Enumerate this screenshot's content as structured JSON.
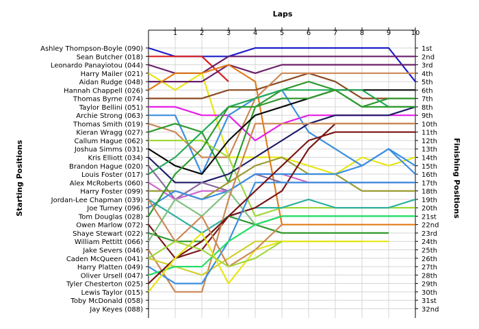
{
  "chart_data": {
    "type": "line",
    "x_axis_title": "Laps",
    "left_axis_title": "Starting Positions",
    "right_axis_title": "Finishing Positions",
    "grid": true,
    "laps": [
      1,
      2,
      3,
      4,
      5,
      6,
      7,
      8,
      9,
      10
    ],
    "starting_labels": [
      "Ashley Thompson-Boyle (090)",
      "Sean Butcher (018)",
      "Leonardo Panayiotou (044)",
      "Harry Mailer (021)",
      "Aidan Rudge (048)",
      "Hannah Chappell (026)",
      "Thomas Byrne (074)",
      "Taylor Bellini (051)",
      "Archie Strong (063)",
      "Thomas Smith (019)",
      "Kieran Wragg (027)",
      "Callum Hague (062)",
      "Joshua Simms (031)",
      "Kris Elliott (034)",
      "Brandon Hague (020)",
      "Louis Foster (017)",
      "Alex McRoberts (060)",
      "Harry Foster (099)",
      "Jordan-Lee Chapman (039)",
      "Joe Turney (096)",
      "Tom Douglas (028)",
      "Owen Marlow (072)",
      "Shaye Stewart (022)",
      "William Pettitt (066)",
      "Jake Severs (046)",
      "Caden McQueen (041)",
      "Harry Platten (049)",
      "Oliver Ursell (047)",
      "Tyler Chesterton (025)",
      "Lewis Taylor (015)",
      "Toby McDonald (058)",
      "Jay Keyes (088)"
    ],
    "finishing_labels": [
      "1st",
      "2nd",
      "3rd",
      "4th",
      "5th",
      "6th",
      "7th",
      "8th",
      "9th",
      "10th",
      "11th",
      "12th",
      "13th",
      "14th",
      "15th",
      "16th",
      "17th",
      "18th",
      "19th",
      "20th",
      "21st",
      "22nd",
      "23rd",
      "24th",
      "25th",
      "26th",
      "27th",
      "28th",
      "29th",
      "30th",
      "31st",
      "32nd"
    ],
    "series": [
      {
        "color": "#1c1cc8",
        "positions": [
          1,
          2,
          2,
          2,
          1,
          1,
          1,
          1,
          1,
          1,
          5
        ]
      },
      {
        "color": "#d81e1e",
        "positions": [
          2,
          2,
          2,
          5
        ]
      },
      {
        "color": "#6a1f6a",
        "positions": [
          3,
          4,
          4,
          2,
          2,
          2,
          2,
          2,
          2,
          2,
          2
        ]
      },
      {
        "color": "#e6e614",
        "positions": [
          4,
          6,
          4,
          14,
          14,
          14,
          15,
          16,
          14,
          15,
          14
        ]
      },
      {
        "color": "#6a1f6a",
        "positions": [
          5,
          5,
          5,
          3,
          4,
          3,
          3,
          3,
          3,
          3,
          3
        ]
      },
      {
        "color": "#e07c18",
        "positions": [
          6,
          4,
          4,
          3,
          5,
          22,
          22,
          22,
          22,
          22,
          22
        ]
      },
      {
        "color": "#8b4a24",
        "positions": [
          7,
          7,
          7,
          6,
          6,
          5,
          4,
          5,
          7,
          7,
          7
        ]
      },
      {
        "color": "#e61ee6",
        "positions": [
          8,
          8,
          9,
          9,
          12,
          10,
          9,
          9,
          9,
          9,
          9
        ]
      },
      {
        "color": "#3a8fe0",
        "positions": [
          9,
          9,
          16,
          9,
          7,
          6,
          11,
          13,
          15,
          13,
          16
        ]
      },
      {
        "color": "#cc8855",
        "positions": [
          10,
          11,
          14,
          14,
          7,
          4,
          4,
          4,
          4,
          4,
          4
        ]
      },
      {
        "color": "#2f9a2f",
        "positions": [
          11,
          10,
          11,
          17,
          8,
          6,
          5,
          6,
          8,
          7,
          7
        ]
      },
      {
        "color": "#a0d838",
        "positions": [
          12,
          12,
          12,
          14,
          21,
          20,
          20,
          20,
          20,
          20,
          20
        ]
      },
      {
        "color": "#0a0a0a",
        "positions": [
          13,
          15,
          16,
          12,
          9,
          8,
          7,
          6,
          6,
          6,
          6
        ]
      },
      {
        "color": "#1c1c66",
        "positions": [
          14,
          17,
          17,
          16,
          14,
          12,
          10,
          9,
          9,
          9,
          8
        ]
      },
      {
        "color": "#886aa0",
        "positions": [
          15,
          19,
          17,
          18,
          16,
          17,
          17,
          17,
          17,
          17,
          17
        ]
      },
      {
        "color": "#22aa55",
        "positions": [
          16,
          14,
          11,
          8,
          7,
          6,
          6,
          6,
          6,
          8,
          8
        ]
      },
      {
        "color": "#cc66cc",
        "positions": [
          17,
          19,
          18,
          18,
          16,
          16,
          17,
          17,
          17,
          17,
          17
        ]
      },
      {
        "color": "#9a9a30",
        "positions": [
          18,
          18,
          19,
          17,
          15,
          14,
          16,
          16,
          18,
          18,
          18
        ]
      },
      {
        "color": "#30b0a0",
        "positions": [
          19,
          21,
          23,
          21,
          20,
          20,
          19,
          20,
          20,
          20,
          19
        ]
      },
      {
        "color": "#3a8fe0",
        "positions": [
          20,
          18,
          19,
          18,
          16,
          16,
          16,
          16,
          15,
          13,
          15
        ]
      },
      {
        "color": "#2f9a2f",
        "positions": [
          21,
          16,
          13,
          8,
          8,
          7,
          7,
          6,
          8,
          8,
          8
        ]
      },
      {
        "color": "#7a1515",
        "positions": [
          22,
          26,
          25,
          21,
          20,
          18,
          13,
          10,
          10,
          10,
          10
        ]
      },
      {
        "color": "#2f9a2f",
        "positions": [
          23,
          24,
          24,
          21,
          22,
          23,
          23,
          23,
          23,
          23
        ]
      },
      {
        "color": "#80c080",
        "positions": [
          24,
          19,
          21,
          18,
          22,
          21,
          21,
          21,
          21,
          21,
          21
        ]
      },
      {
        "color": "#cc8855",
        "positions": [
          25,
          30,
          30,
          19,
          10,
          10,
          10,
          10,
          10,
          10,
          10
        ]
      },
      {
        "color": "#d0d030",
        "positions": [
          26,
          27,
          28,
          26,
          24,
          24,
          24,
          24,
          24
        ]
      },
      {
        "color": "#3a8fe0",
        "positions": [
          27,
          29,
          29,
          24,
          17,
          17,
          17,
          17,
          17,
          17,
          17
        ]
      },
      {
        "color": "#22dd66",
        "positions": [
          28,
          27,
          27,
          24,
          22,
          21,
          21,
          21,
          21,
          21,
          21
        ]
      },
      {
        "color": "#7a1515",
        "positions": [
          29,
          26,
          24,
          21,
          18,
          15,
          12,
          11,
          11,
          11,
          11
        ]
      },
      {
        "color": "#e6e614",
        "positions": [
          30,
          26,
          23,
          29,
          25,
          24,
          24,
          24,
          24,
          24
        ]
      },
      {
        "color": "#cc8855",
        "positions": [
          19,
          24,
          21,
          27,
          25,
          22
        ]
      },
      {
        "color": "#a0d838",
        "positions": [
          26,
          24,
          25,
          27,
          26,
          24
        ]
      }
    ]
  }
}
